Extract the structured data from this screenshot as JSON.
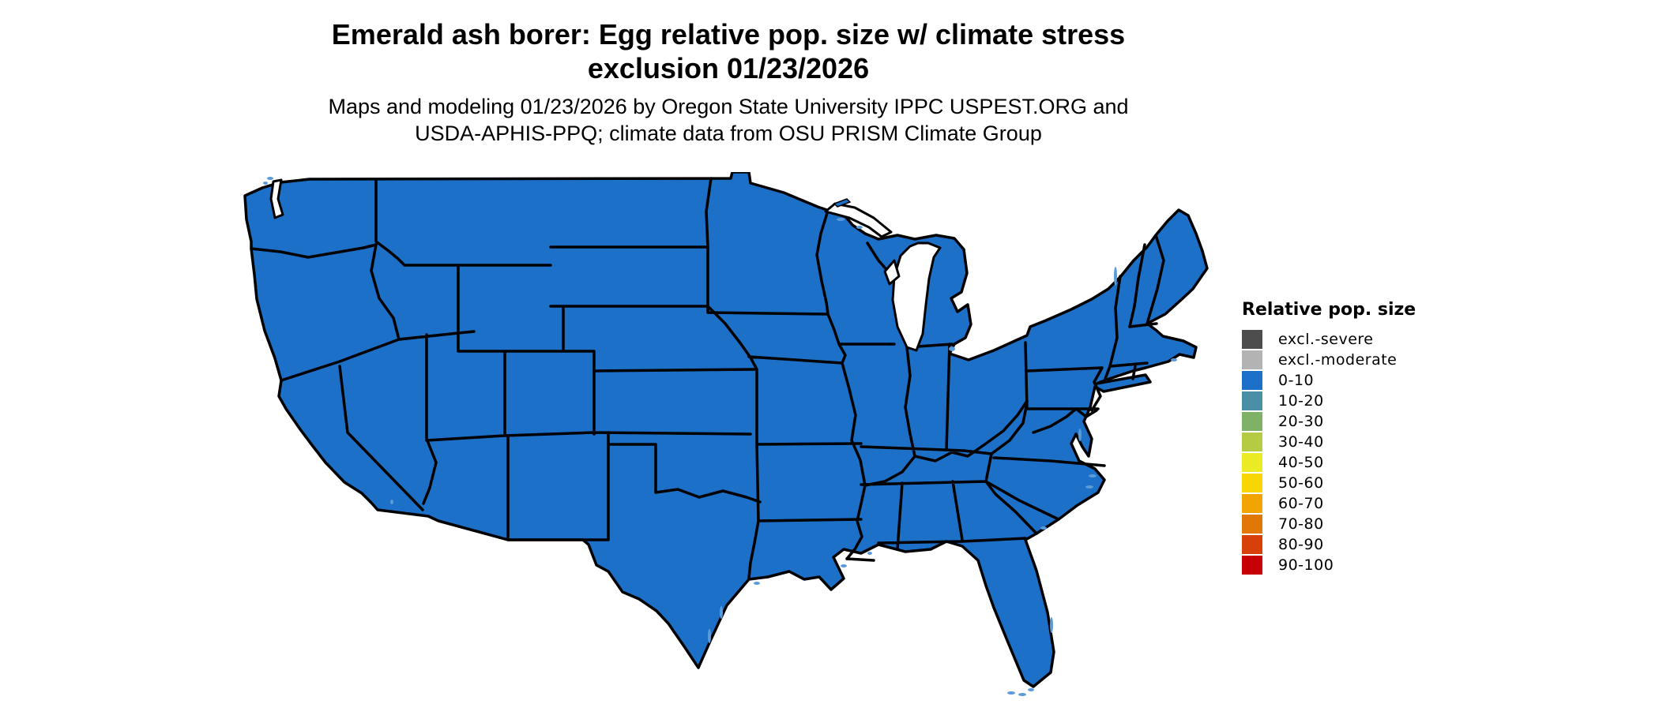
{
  "title": {
    "line1": "Emerald ash borer: Egg relative pop. size w/ climate stress",
    "line2": "exclusion 01/23/2026"
  },
  "subtitle": {
    "line1": "Maps and modeling 01/23/2026 by Oregon State University IPPC USPEST.ORG and",
    "line2": "USDA-APHIS-PPQ; climate data from OSU PRISM Climate Group"
  },
  "map": {
    "region": "Conterminous United States with state borders",
    "all_states_category": "0-10",
    "fill_color": "#1C70C8",
    "border_color": "#000000",
    "water_color": "#5A9BD9",
    "background_color": "#FFFFFF"
  },
  "legend": {
    "title": "Relative pop. size",
    "items": [
      {
        "label": "excl.-severe",
        "color": "#4D4D4D"
      },
      {
        "label": "excl.-moderate",
        "color": "#B3B3B3"
      },
      {
        "label": "0-10",
        "color": "#1C70C8"
      },
      {
        "label": "10-20",
        "color": "#4A8FA5"
      },
      {
        "label": "20-30",
        "color": "#7FB166"
      },
      {
        "label": "30-40",
        "color": "#B5CB44"
      },
      {
        "label": "40-50",
        "color": "#EAEA25"
      },
      {
        "label": "50-60",
        "color": "#F8D603"
      },
      {
        "label": "60-70",
        "color": "#F0A502"
      },
      {
        "label": "70-80",
        "color": "#E17707"
      },
      {
        "label": "80-90",
        "color": "#D8400A"
      },
      {
        "label": "90-100",
        "color": "#C70008"
      }
    ]
  }
}
